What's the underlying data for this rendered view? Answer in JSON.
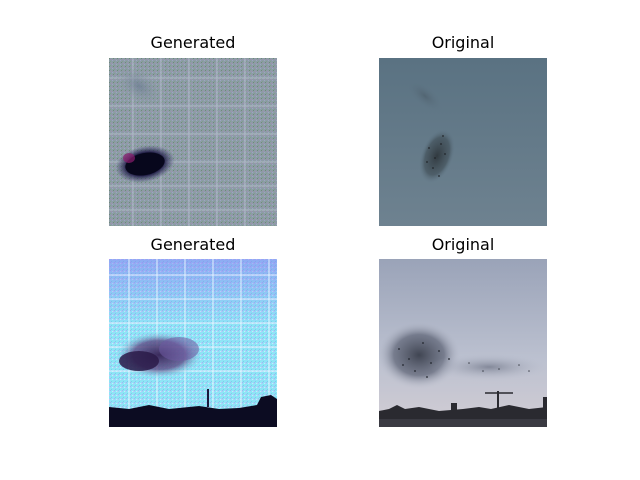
{
  "figure": {
    "panels": [
      {
        "title": "Generated",
        "image": "generated-flock-closeup"
      },
      {
        "title": "Original",
        "image": "original-flock-closeup"
      },
      {
        "title": "Generated",
        "image": "generated-flock-skyline"
      },
      {
        "title": "Original",
        "image": "original-flock-skyline"
      }
    ]
  },
  "colors": {
    "background": "#ffffff",
    "gen1_tone": "#8a9aa4",
    "orig1_sky": "#5f7585",
    "gen2_tone": "#8fe8f8",
    "orig2_sky": "#b7bccb"
  }
}
